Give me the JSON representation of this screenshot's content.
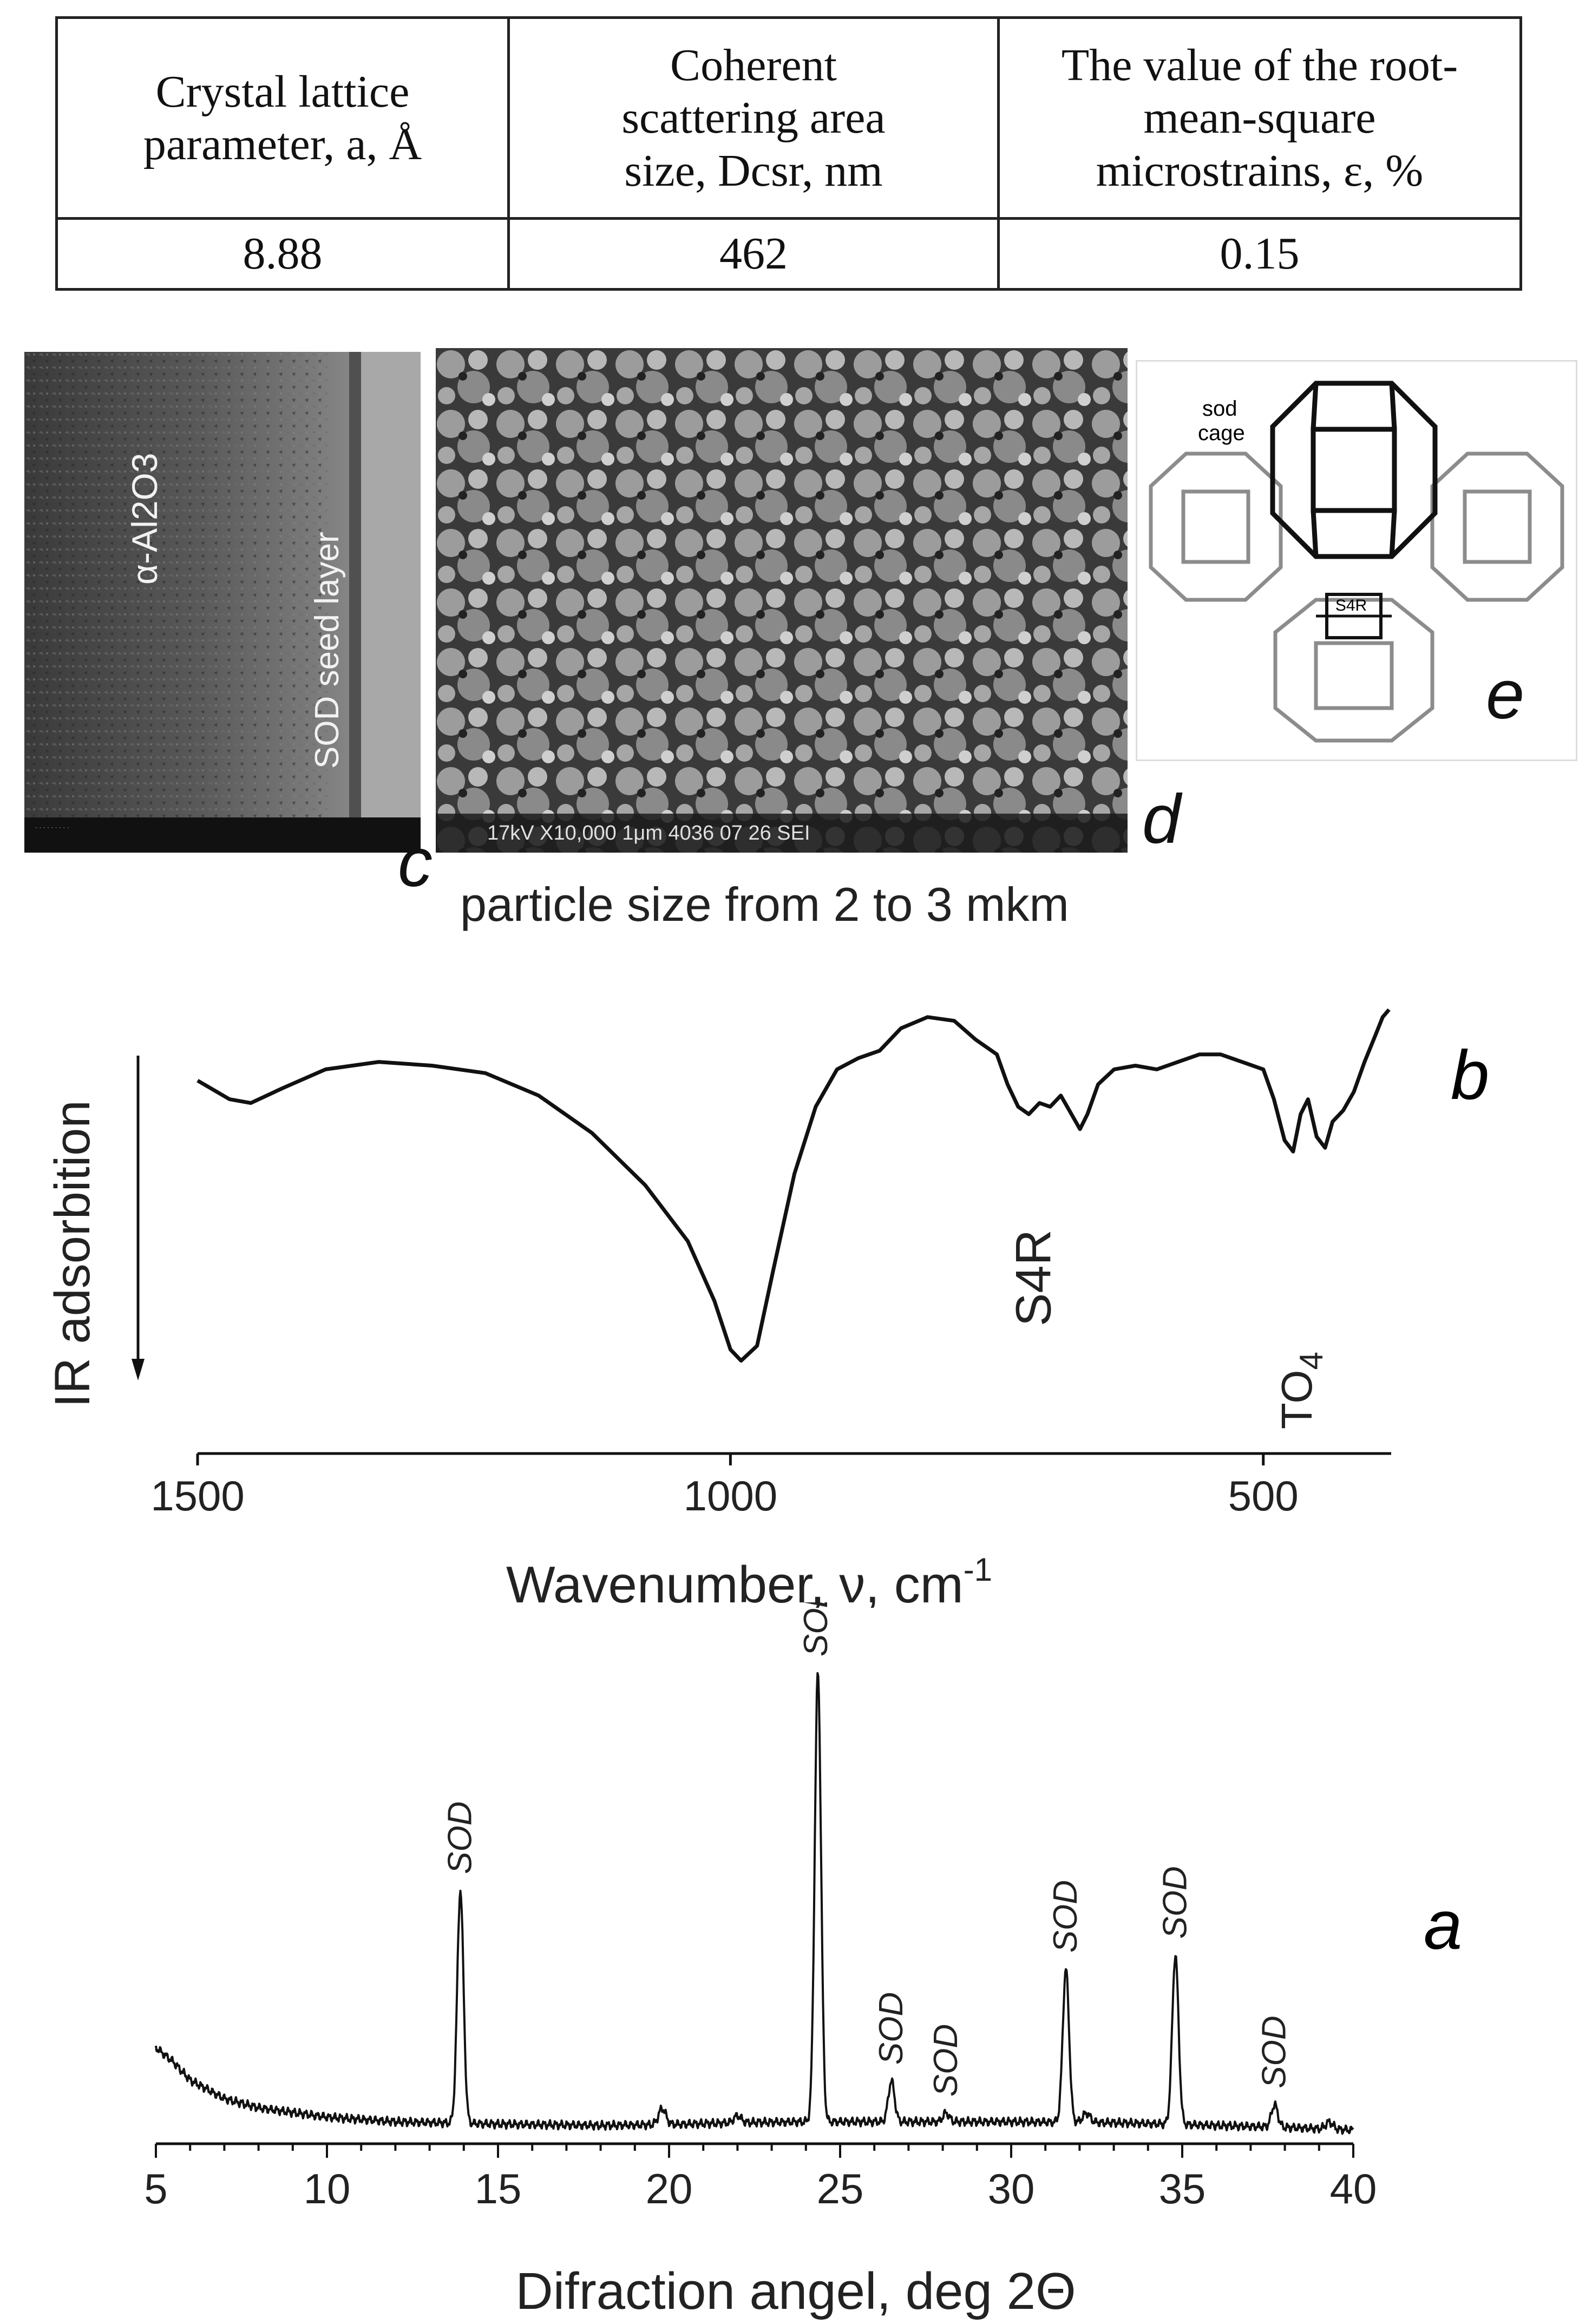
{
  "table": {
    "headers": [
      "Crystal lattice parameter, a, Å",
      "Coherent scattering area size, Dcsr, nm",
      "The value of the root-mean-square microstrains, ε, %"
    ],
    "header_lines": [
      [
        "Crystal lattice",
        "parameter, a, Å"
      ],
      [
        "Coherent",
        "scattering area",
        "size, Dcsr, nm"
      ],
      [
        "The value of the root-",
        "mean-square",
        "microstrains, ε, %"
      ]
    ],
    "values": [
      "8.88",
      "462",
      "0.15"
    ]
  },
  "images": {
    "c": {
      "letter": "c",
      "caption": "particle size from 2 to 3 mkm",
      "label_top": "α-Al2O3",
      "label_bottom": "SOD seed layer"
    },
    "d": {
      "letter": "d",
      "sem_text": "17kV  X10,000  1μm  4036 07 26 SEI"
    },
    "e": {
      "letter": "e",
      "label_cage_1": "sod",
      "label_cage_2": "cage",
      "label_ring": "S4R"
    }
  },
  "colors": {
    "line": "#111111",
    "axis": "#111111",
    "sem_dark": "#2b2b2b",
    "sem_light": "#bfbfbf",
    "frame_grey": "#8a8a8a"
  },
  "chart_data": [
    {
      "panel": "b",
      "type": "line",
      "letter": "b",
      "title": "",
      "xlabel": "Wavenumber, ν, cm-1",
      "xlabel_parts": {
        "main": "Wavenumber, ν, cm",
        "sup": "-1"
      },
      "ylabel": "IR adsorbition",
      "xlim": [
        1500,
        380
      ],
      "x_reversed": true,
      "ylim": [
        0,
        1
      ],
      "ticks": [
        1500,
        1000,
        500
      ],
      "tick_labels": [
        "1500",
        "1000",
        "500"
      ],
      "annotations": [
        {
          "text": "S4R",
          "x": 720
        },
        {
          "text": "TO4",
          "x": 470
        }
      ],
      "series": [
        {
          "x": [
            1500,
            1470,
            1450,
            1420,
            1380,
            1330,
            1280,
            1230,
            1180,
            1130,
            1080,
            1040,
            1015,
            1000,
            990,
            975,
            960,
            940,
            920,
            900,
            880,
            860,
            840,
            815,
            790,
            770,
            750,
            740,
            730,
            720,
            710,
            700,
            690,
            680,
            672,
            665,
            655,
            640,
            620,
            600,
            580,
            560,
            540,
            520,
            500,
            490,
            480,
            472,
            465,
            458,
            450,
            442,
            435,
            425,
            415,
            405,
            395,
            388,
            382
          ],
          "y": [
            0.81,
            0.76,
            0.75,
            0.79,
            0.84,
            0.86,
            0.85,
            0.83,
            0.77,
            0.67,
            0.53,
            0.38,
            0.22,
            0.09,
            0.06,
            0.1,
            0.3,
            0.56,
            0.74,
            0.84,
            0.87,
            0.89,
            0.95,
            0.98,
            0.97,
            0.92,
            0.88,
            0.8,
            0.74,
            0.72,
            0.75,
            0.74,
            0.77,
            0.72,
            0.68,
            0.72,
            0.8,
            0.84,
            0.85,
            0.84,
            0.86,
            0.88,
            0.88,
            0.86,
            0.84,
            0.76,
            0.65,
            0.62,
            0.72,
            0.76,
            0.66,
            0.63,
            0.7,
            0.73,
            0.78,
            0.86,
            0.93,
            0.98,
            1.0
          ]
        }
      ]
    },
    {
      "panel": "a",
      "type": "line",
      "letter": "a",
      "title": "",
      "xlabel": "Difraction angel, deg 2Θ",
      "ylabel": "",
      "xlim": [
        5,
        40
      ],
      "ylim": [
        0,
        1
      ],
      "ticks": [
        5,
        10,
        15,
        20,
        25,
        30,
        35,
        40
      ],
      "tick_labels": [
        "5",
        "10",
        "15",
        "20",
        "25",
        "30",
        "35",
        "40"
      ],
      "peak_labels": [
        {
          "text": "SOD",
          "x": 13.9
        },
        {
          "text": "SOD",
          "x": 24.3
        },
        {
          "text": "SOD",
          "x": 26.5
        },
        {
          "text": "SOD",
          "x": 28.1
        },
        {
          "text": "SOD",
          "x": 31.6
        },
        {
          "text": "SOD",
          "x": 34.8
        },
        {
          "text": "SOD",
          "x": 37.7
        }
      ],
      "peaks": [
        {
          "x": 13.9,
          "y": 0.53
        },
        {
          "x": 24.35,
          "y": 1.0
        },
        {
          "x": 26.5,
          "y": 0.118
        },
        {
          "x": 28.1,
          "y": 0.049
        },
        {
          "x": 31.6,
          "y": 0.36
        },
        {
          "x": 34.8,
          "y": 0.39
        },
        {
          "x": 37.7,
          "y": 0.067
        }
      ],
      "baseline": {
        "x": [
          5,
          5.5,
          6,
          7,
          8,
          9,
          10,
          12,
          15,
          18,
          20,
          22,
          24,
          26,
          30,
          33,
          36,
          38,
          40
        ],
        "y": [
          0.19,
          0.16,
          0.12,
          0.08,
          0.06,
          0.05,
          0.04,
          0.03,
          0.025,
          0.022,
          0.024,
          0.028,
          0.03,
          0.03,
          0.03,
          0.028,
          0.022,
          0.018,
          0.012
        ]
      },
      "minor_bumps": [
        {
          "x": 19.8,
          "y": 0.035
        },
        {
          "x": 22.0,
          "y": 0.015
        },
        {
          "x": 32.2,
          "y": 0.02
        },
        {
          "x": 39.3,
          "y": 0.015
        }
      ]
    }
  ]
}
